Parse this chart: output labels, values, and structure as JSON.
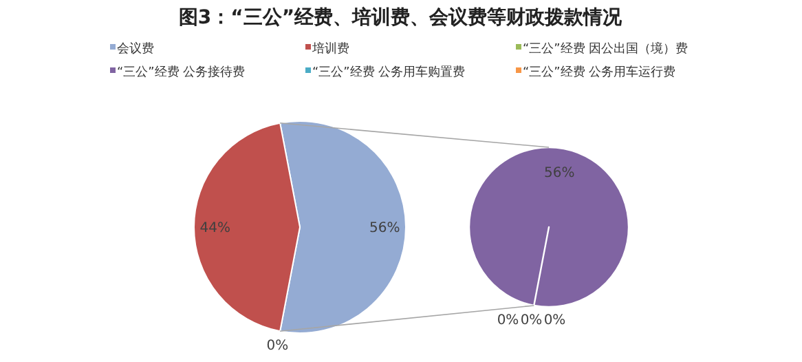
{
  "chart_data": [
    {
      "type": "pie",
      "title": "图3：“三公”经费、培训费、会议费等财政拨款情况",
      "categories": [
        "会议费",
        "培训费",
        null
      ],
      "values": [
        56,
        44,
        0
      ],
      "value_labels": [
        "56%",
        "44%",
        "0%"
      ],
      "colors": [
        "#94abd3",
        "#c0504d",
        null
      ],
      "legend": "top"
    },
    {
      "type": "pie",
      "categories": [
        "“三公”经费 因公出国（境）费",
        "“三公”经费 公务接待费",
        "“三公”经费 公务用车购置费",
        "“三公”经费 公务用车运行费"
      ],
      "values": [
        0,
        56,
        0,
        0
      ],
      "value_labels": [
        "0%",
        "56%",
        "0%",
        "0%"
      ],
      "colors": [
        "#9bbb59",
        "#8064a2",
        "#4bacc6",
        "#f79646"
      ],
      "legend": "top"
    }
  ]
}
